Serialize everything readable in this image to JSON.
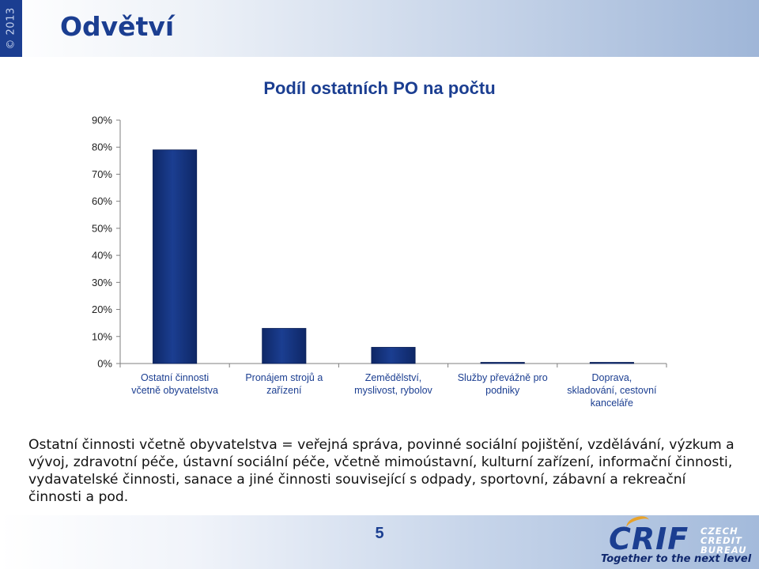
{
  "header": {
    "year": "© 2013",
    "title": "Odvětví"
  },
  "chart_data": {
    "type": "bar",
    "title": "Podíl ostatních PO na počtu",
    "categories": [
      [
        "Ostatní činnosti",
        "včetně obyvatelstva"
      ],
      [
        "Pronájem strojů a",
        "zařízení"
      ],
      [
        "Zemědělství,",
        "myslivost, rybolov"
      ],
      [
        "Služby převážně pro",
        "podniky"
      ],
      [
        "Doprava,",
        "skladování, cestovní",
        "kanceláře"
      ]
    ],
    "values": [
      79,
      13,
      6,
      0.4,
      0.3
    ],
    "ylim": [
      0,
      90
    ],
    "yticks": [
      "0%",
      "10%",
      "20%",
      "30%",
      "40%",
      "50%",
      "60%",
      "70%",
      "80%",
      "90%"
    ],
    "tick_values": [
      0,
      10,
      20,
      30,
      40,
      50,
      60,
      70,
      80,
      90
    ],
    "grid": false,
    "bar_color": "#1b3e91"
  },
  "description": "Ostatní činnosti včetně obyvatelstva = veřejná správa, povinné sociální pojištění, vzdělávání, výzkum a vývoj, zdravotní péče, ústavní sociální péče, včetně mimoústavní, kulturní zařízení, informační činnosti, vydavatelské činnosti, sanace a jiné činnosti související s odpady, sportovní, zábavní a rekreační činnosti a pod.",
  "footer": {
    "page_number": "5",
    "logo": {
      "name": "CRIF",
      "sub1": "CZECH",
      "sub2": "CREDIT",
      "sub3": "BUREAU"
    },
    "tagline": "Together to the next level"
  }
}
